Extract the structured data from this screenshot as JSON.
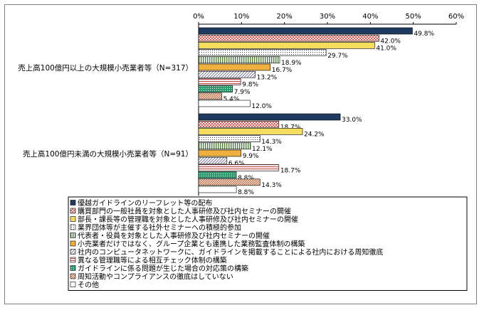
{
  "chart_data": {
    "type": "bar",
    "orientation": "horizontal",
    "x_unit": "%",
    "xlim": [
      0,
      60
    ],
    "ticks": [
      "0%",
      "10%",
      "20%",
      "30%",
      "40%",
      "50%",
      "60%"
    ],
    "grid": false,
    "legend_position": "bottom",
    "groups": [
      {
        "label": "売上高100億円以上の大規模小売業者等（N=317）",
        "values": [
          49.8,
          42.0,
          41.0,
          29.7,
          18.9,
          16.7,
          13.2,
          9.8,
          7.9,
          5.4,
          12.0
        ],
        "value_labels": [
          "49.8%",
          "42.0%",
          "41.0%",
          "29.7%",
          "18.9%",
          "16.7%",
          "13.2%",
          "9.8%",
          "7.9%",
          "5.4%",
          "12.0%"
        ]
      },
      {
        "label": "売上高100億円未満の大規模小売業者等（N=91）",
        "values": [
          33.0,
          18.7,
          24.2,
          14.3,
          12.1,
          9.9,
          6.6,
          18.7,
          8.8,
          14.3,
          8.8
        ],
        "value_labels": [
          "33.0%",
          "18.7%",
          "24.2%",
          "14.3%",
          "12.1%",
          "9.9%",
          "6.6%",
          "18.7%",
          "8.8%",
          "14.3%",
          "8.8%"
        ]
      }
    ],
    "series": [
      {
        "name": "優越ガイドラインのリーフレット等の配布",
        "color": "#1f3a5f",
        "pattern": "solid"
      },
      {
        "name": "購買部門の一般社員を対象とした人事研修及び社内セミナーの開催",
        "color": "#c0504d",
        "pattern": "cross"
      },
      {
        "name": "部長・課長等の管理職を対象とした人事研修及び社内セミナーの開催",
        "color": "#f5dd60",
        "pattern": "fill"
      },
      {
        "name": "業界団体等が主催する社外セミナーへの積極的参加",
        "color": "#333333",
        "pattern": "dots"
      },
      {
        "name": "代表者・役員を対象とした人事研修及び社内セミナーの開催",
        "color": "#4f7a3a",
        "pattern": "vlines"
      },
      {
        "name": "小売業者だけではなく、グループ企業とも連携した業務監査体制の構築",
        "color": "#f0b040",
        "pattern": "fill"
      },
      {
        "name": "社内のコンピュータネットワークに、ガイドラインを掲載することによる社内における周知徹底",
        "color": "#6a6a8a",
        "pattern": "diag"
      },
      {
        "name": "異なる管理職等による相互チェック体制の構築",
        "color": "#c0504d",
        "pattern": "hlines"
      },
      {
        "name": "ガイドラインに係る問題が生じた場合の対応策の構築",
        "color": "#2e9a6e",
        "pattern": "grid"
      },
      {
        "name": "周知活動やコンプライアンスの徹底はしていない",
        "color": "#b55a2a",
        "pattern": "diag2"
      },
      {
        "name": "その他",
        "color": "#ffffff",
        "pattern": "none"
      }
    ]
  }
}
